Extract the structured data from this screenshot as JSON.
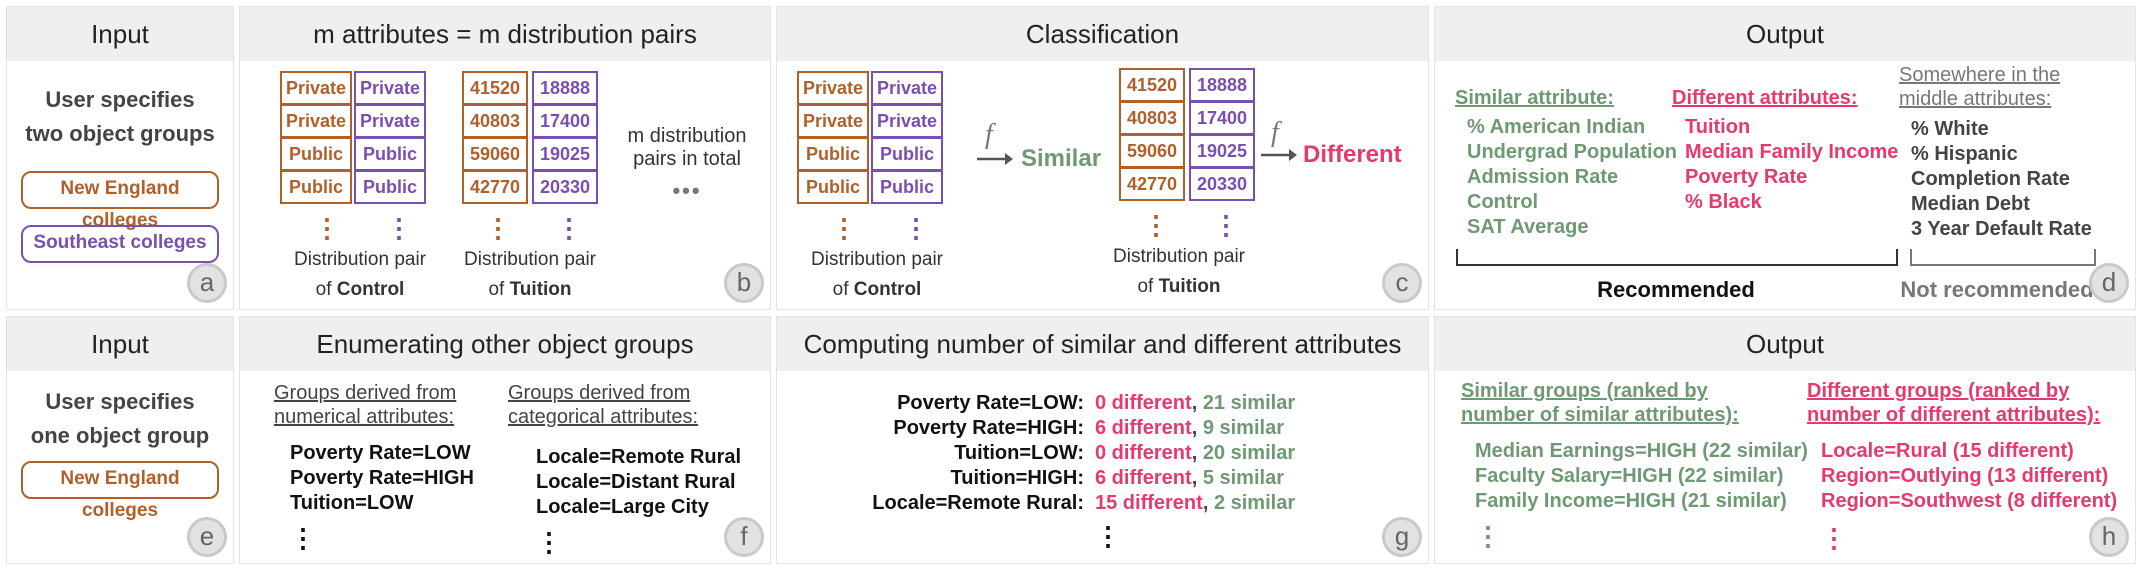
{
  "top": {
    "input": {
      "header": "Input",
      "line1": "User specifies",
      "line2": "two object groups",
      "group1": "New England colleges",
      "group2": "Southeast colleges",
      "badge": "a"
    },
    "pairs": {
      "header": "m attributes = m distribution pairs",
      "control_left": [
        "Private",
        "Private",
        "Public",
        "Public"
      ],
      "control_right": [
        "Private",
        "Private",
        "Public",
        "Public"
      ],
      "tuition_left": [
        "41520",
        "40803",
        "59060",
        "42770"
      ],
      "tuition_right": [
        "18888",
        "17400",
        "19025",
        "20330"
      ],
      "pair_label": "Distribution pair",
      "of_word": "of",
      "control_name": "Control",
      "tuition_name": "Tuition",
      "m_line1": "m distribution",
      "m_line2": "pairs in total",
      "ellipsis": "•••",
      "badge": "b"
    },
    "classification": {
      "header": "Classification",
      "f": "f",
      "similar": "Similar",
      "different": "Different",
      "badge": "c"
    },
    "output": {
      "header": "Output",
      "similar_title": "Similar attribute:",
      "similar_items": [
        "% American Indian",
        "Undergrad Population",
        "Admission Rate",
        "Control",
        "SAT Average"
      ],
      "different_title": "Different attributes:",
      "different_items": [
        "Tuition",
        "Median Family Income",
        "Poverty Rate",
        "% Black"
      ],
      "middle_title1": "Somewhere in the",
      "middle_title2": "middle attributes:",
      "middle_items": [
        "% White",
        "% Hispanic",
        "Completion Rate",
        "Median Debt",
        "3 Year Default Rate"
      ],
      "recommended": "Recommended",
      "not_recommended": "Not recommended",
      "badge": "d"
    }
  },
  "bottom": {
    "input": {
      "header": "Input",
      "line1": "User specifies",
      "line2": "one object group",
      "group1": "New England colleges",
      "badge": "e"
    },
    "enumerate": {
      "header": "Enumerating other object groups",
      "num_title1": "Groups derived from",
      "num_title2": "numerical attributes:",
      "num_items": [
        "Poverty Rate=LOW",
        "Poverty Rate=HIGH",
        "Tuition=LOW"
      ],
      "cat_title1": "Groups derived from",
      "cat_title2": "categorical attributes:",
      "cat_items": [
        "Locale=Remote Rural",
        "Locale=Distant Rural",
        "Locale=Large City"
      ],
      "badge": "f"
    },
    "computing": {
      "header": "Computing number of similar and different attributes",
      "rows": [
        {
          "group": "Poverty Rate=LOW:",
          "diff": "0 different",
          "sim": "21 similar"
        },
        {
          "group": "Poverty Rate=HIGH:",
          "diff": "6 different",
          "sim": "9 similar"
        },
        {
          "group": "Tuition=LOW:",
          "diff": "0 different",
          "sim": "20 similar"
        },
        {
          "group": "Tuition=HIGH:",
          "diff": "6 different",
          "sim": "5 similar"
        },
        {
          "group": "Locale=Remote Rural:",
          "diff": "15 different",
          "sim": "2 similar"
        }
      ],
      "badge": "g"
    },
    "output": {
      "header": "Output",
      "sim_title1": "Similar groups (ranked by",
      "sim_title2": "number of similar attributes):",
      "sim_items": [
        "Median Earnings=HIGH (22 similar)",
        "Faculty Salary=HIGH (22 similar)",
        "Family Income=HIGH (21 similar)"
      ],
      "diff_title1": "Different groups (ranked by",
      "diff_title2": "number of different attributes):",
      "diff_items": [
        "Locale=Rural (15 different)",
        "Region=Outlying (13 different)",
        "Region=Southwest (8 different)"
      ],
      "badge": "h"
    }
  }
}
